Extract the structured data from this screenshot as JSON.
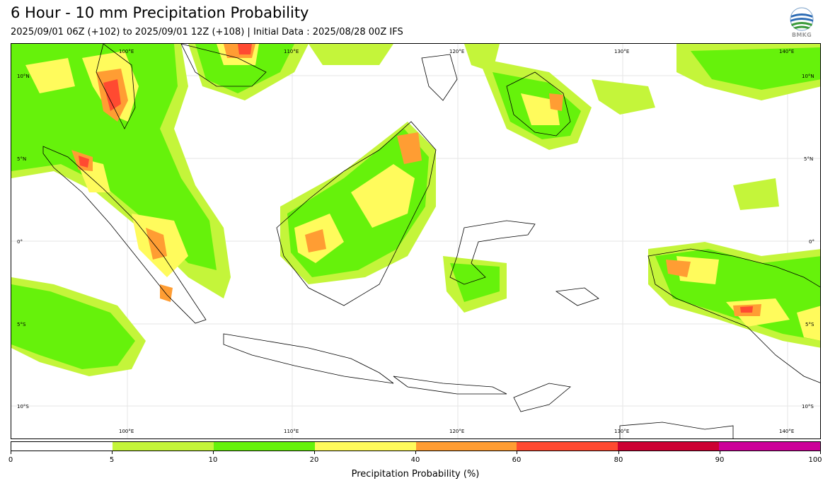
{
  "header": {
    "title": "6 Hour - 10 mm Precipitation Probability",
    "subtitle": "2025/09/01 06Z (+102) to 2025/09/01 12Z (+108) | Initial Data : 2025/08/28 00Z IFS"
  },
  "logo": {
    "text": "BMKG",
    "icon": "bmkg-globe-logo"
  },
  "map": {
    "lon_labels": [
      "100°E",
      "110°E",
      "120°E",
      "130°E",
      "140°E"
    ],
    "lat_labels": [
      "10°N",
      "5°N",
      "0°",
      "5°S",
      "10°S"
    ],
    "grid": true
  },
  "colorbar": {
    "title": "Precipitation Probability (%)",
    "tick_labels": [
      "0",
      "5",
      "10",
      "20",
      "40",
      "60",
      "80",
      "90",
      "100"
    ],
    "colors": [
      "#ffffff",
      "#c4f53a",
      "#66f20b",
      "#fffb5c",
      "#ff9d33",
      "#ff4a31",
      "#cc0033",
      "#cc0099"
    ]
  }
}
